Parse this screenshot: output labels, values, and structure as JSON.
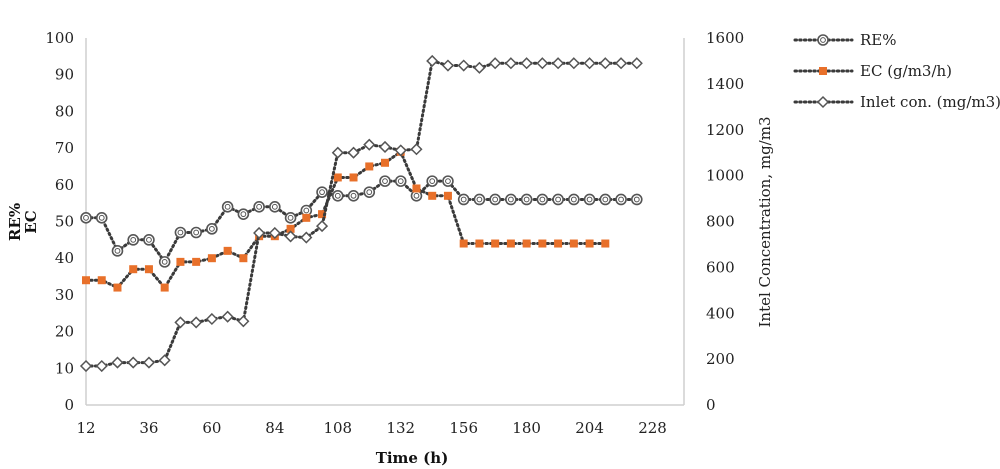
{
  "chart_data": {
    "type": "line",
    "xlabel": "Time (h)",
    "ylabel_left_lines": [
      "RE%",
      "EC"
    ],
    "ylabel_right": "Intel Concentration, mg/m3",
    "x_ticks": [
      12,
      36,
      60,
      84,
      108,
      132,
      156,
      180,
      204,
      228
    ],
    "xlim": [
      12,
      240
    ],
    "ylim_left": [
      0,
      100
    ],
    "ylim_right": [
      0,
      1600
    ],
    "y_ticks_left": [
      0,
      10,
      20,
      30,
      40,
      50,
      60,
      70,
      80,
      90,
      100
    ],
    "y_ticks_right": [
      0,
      200,
      400,
      600,
      800,
      1000,
      1200,
      1400,
      1600
    ],
    "legend_position": "right",
    "grid": false,
    "series": [
      {
        "name": "RE%",
        "axis": "left",
        "marker": "circle",
        "color": "#555555",
        "x": [
          12,
          18,
          24,
          30,
          36,
          42,
          48,
          54,
          60,
          66,
          72,
          78,
          84,
          90,
          96,
          102,
          108,
          114,
          120,
          126,
          132,
          138,
          144,
          150,
          156,
          162,
          168,
          174,
          180,
          186,
          192,
          198,
          204,
          210,
          216,
          222
        ],
        "y": [
          51,
          51,
          42,
          45,
          45,
          39,
          47,
          47,
          48,
          54,
          52,
          54,
          54,
          51,
          53,
          58,
          57,
          57,
          58,
          61,
          61,
          57,
          61,
          61,
          56,
          56,
          56,
          56,
          56,
          56,
          56,
          56,
          56,
          56,
          56,
          56
        ]
      },
      {
        "name": "EC (g/m3/h)",
        "axis": "left",
        "marker": "square",
        "color": "#e8702a",
        "x": [
          12,
          18,
          24,
          30,
          36,
          42,
          48,
          54,
          60,
          66,
          72,
          78,
          84,
          90,
          96,
          102,
          108,
          114,
          120,
          126,
          132,
          138,
          144,
          150,
          156,
          162,
          168,
          174,
          180,
          186,
          192,
          198,
          204,
          210
        ],
        "y": [
          34,
          34,
          32,
          37,
          37,
          32,
          39,
          39,
          40,
          42,
          40,
          46,
          46,
          48,
          51,
          52,
          62,
          62,
          65,
          66,
          69,
          59,
          57,
          57,
          44,
          44,
          44,
          44,
          44,
          44,
          44,
          44,
          44,
          44
        ]
      },
      {
        "name": "Inlet con. (mg/m3)",
        "axis": "right",
        "marker": "diamond",
        "color": "#555555",
        "x": [
          12,
          18,
          24,
          30,
          36,
          42,
          48,
          54,
          60,
          66,
          72,
          78,
          84,
          90,
          96,
          102,
          108,
          114,
          120,
          126,
          132,
          138,
          144,
          150,
          156,
          162,
          168,
          174,
          180,
          186,
          192,
          198,
          204,
          210,
          216,
          222
        ],
        "y": [
          170,
          170,
          185,
          185,
          185,
          195,
          360,
          360,
          375,
          385,
          365,
          750,
          750,
          735,
          730,
          780,
          1100,
          1100,
          1135,
          1125,
          1110,
          1115,
          1500,
          1480,
          1480,
          1470,
          1490,
          1490,
          1490,
          1490,
          1490,
          1490,
          1490,
          1490,
          1490,
          1490
        ]
      }
    ]
  }
}
